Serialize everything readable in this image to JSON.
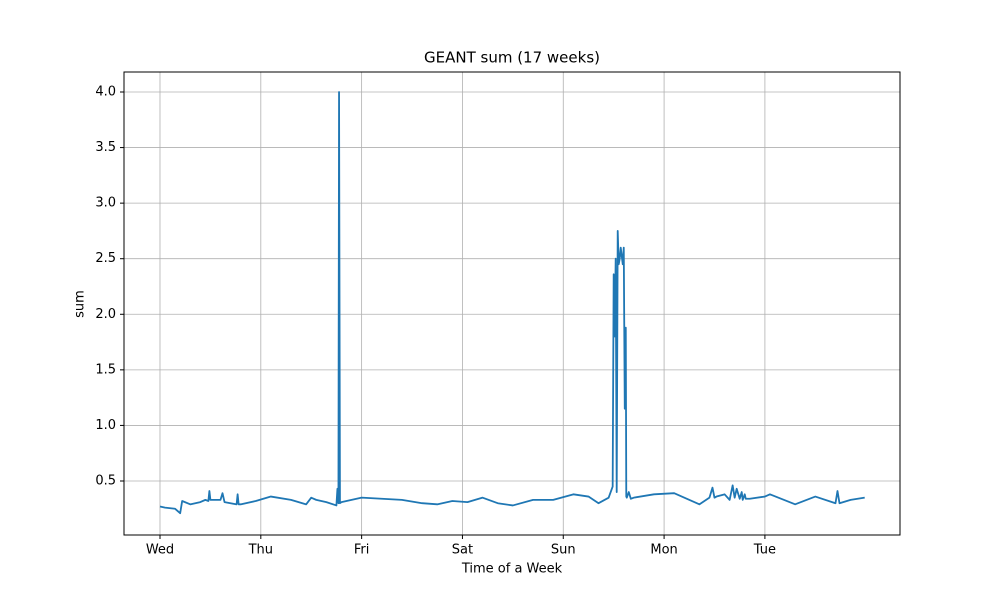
{
  "chart_data": {
    "type": "line",
    "title": "GEANT sum (17 weeks)",
    "x_label": "Time of a Week",
    "y_label": "sum",
    "series": [
      {
        "name": "sum",
        "color": "#1f77b4",
        "x": [
          0,
          0.05,
          0.15,
          0.2,
          0.22,
          0.3,
          0.4,
          0.45,
          0.48,
          0.49,
          0.5,
          0.6,
          0.62,
          0.64,
          0.7,
          0.76,
          0.77,
          0.78,
          0.8,
          0.95,
          1.1,
          1.3,
          1.45,
          1.5,
          1.55,
          1.65,
          1.75,
          1.76,
          1.77,
          1.776,
          1.785,
          1.8,
          1.85,
          2.0,
          2.2,
          2.4,
          2.6,
          2.75,
          2.9,
          3.05,
          3.2,
          3.35,
          3.5,
          3.7,
          3.9,
          4.1,
          4.25,
          4.35,
          4.45,
          4.49,
          4.5,
          4.51,
          4.52,
          4.53,
          4.54,
          4.55,
          4.56,
          4.57,
          4.59,
          4.6,
          4.61,
          4.62,
          4.625,
          4.63,
          4.65,
          4.67,
          4.7,
          4.9,
          5.1,
          5.35,
          5.45,
          5.48,
          5.5,
          5.52,
          5.6,
          5.65,
          5.68,
          5.7,
          5.72,
          5.75,
          5.77,
          5.78,
          5.8,
          5.81,
          5.85,
          6.0,
          6.05,
          6.3,
          6.5,
          6.7,
          6.72,
          6.74,
          6.85,
          6.99
        ],
        "values": [
          0.27,
          0.26,
          0.25,
          0.21,
          0.32,
          0.29,
          0.31,
          0.33,
          0.32,
          0.41,
          0.33,
          0.33,
          0.39,
          0.31,
          0.3,
          0.29,
          0.38,
          0.29,
          0.29,
          0.32,
          0.36,
          0.33,
          0.29,
          0.35,
          0.33,
          0.31,
          0.28,
          0.43,
          0.3,
          4.0,
          0.3,
          0.31,
          0.32,
          0.35,
          0.34,
          0.33,
          0.3,
          0.29,
          0.32,
          0.31,
          0.35,
          0.3,
          0.28,
          0.33,
          0.33,
          0.38,
          0.36,
          0.3,
          0.35,
          0.45,
          2.36,
          1.8,
          2.5,
          0.4,
          2.75,
          2.45,
          2.5,
          2.6,
          2.45,
          2.6,
          1.15,
          1.88,
          0.36,
          0.35,
          0.4,
          0.34,
          0.35,
          0.38,
          0.39,
          0.29,
          0.35,
          0.44,
          0.35,
          0.36,
          0.38,
          0.33,
          0.46,
          0.35,
          0.43,
          0.34,
          0.4,
          0.33,
          0.38,
          0.34,
          0.34,
          0.36,
          0.38,
          0.29,
          0.36,
          0.3,
          0.41,
          0.3,
          0.33,
          0.35
        ]
      }
    ],
    "xlim": [
      -0.357,
      7.34
    ],
    "ylim": [
      0.014,
      4.18
    ],
    "xticks": [
      {
        "value": 0,
        "label": "Wed"
      },
      {
        "value": 1,
        "label": "Thu"
      },
      {
        "value": 2,
        "label": "Fri"
      },
      {
        "value": 3,
        "label": "Sat"
      },
      {
        "value": 4,
        "label": "Sun"
      },
      {
        "value": 5,
        "label": "Mon"
      },
      {
        "value": 6,
        "label": "Tue"
      }
    ],
    "yticks": [
      0.5,
      {
        "value": 1,
        "label": "1.0"
      },
      1.5,
      {
        "value": 2,
        "label": "2.0"
      },
      2.5,
      {
        "value": 3,
        "label": "3.0"
      },
      3.5,
      {
        "value": 4,
        "label": "4.0"
      }
    ],
    "grid": true
  }
}
